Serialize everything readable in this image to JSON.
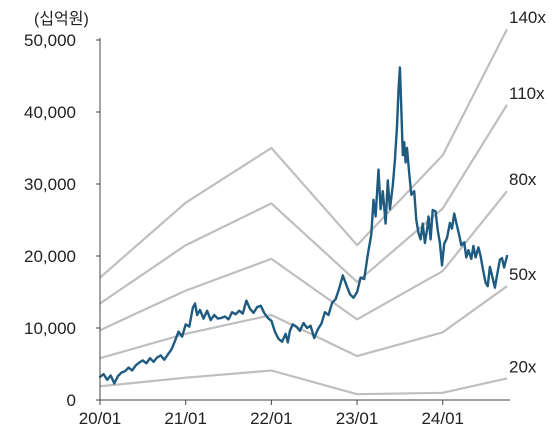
{
  "chart_data": {
    "type": "line",
    "title": "",
    "unit_label": "(십억원)",
    "xlabel": "",
    "ylabel": "",
    "x_ticks": [
      {
        "t": 0,
        "label": "20/01"
      },
      {
        "t": 12,
        "label": "21/01"
      },
      {
        "t": 24,
        "label": "22/01"
      },
      {
        "t": 36,
        "label": "23/01"
      },
      {
        "t": 48,
        "label": "24/01"
      }
    ],
    "xlim": [
      0,
      57
    ],
    "y_ticks": [
      {
        "v": 0,
        "label": "0"
      },
      {
        "v": 10000,
        "label": "10,000"
      },
      {
        "v": 20000,
        "label": "20,000"
      },
      {
        "v": 30000,
        "label": "30,000"
      },
      {
        "v": 40000,
        "label": "40,000"
      },
      {
        "v": 50000,
        "label": "50,000"
      }
    ],
    "ylim": [
      0,
      50000
    ],
    "grid": false,
    "band_series": [
      {
        "label": "140x",
        "points": [
          [
            0,
            17000
          ],
          [
            12,
            27400
          ],
          [
            24,
            35000
          ],
          [
            36,
            21500
          ],
          [
            48,
            34000
          ],
          [
            57,
            51500
          ]
        ]
      },
      {
        "label": "110x",
        "points": [
          [
            0,
            13400
          ],
          [
            12,
            21500
          ],
          [
            24,
            27300
          ],
          [
            36,
            16400
          ],
          [
            48,
            26600
          ],
          [
            57,
            41000
          ]
        ]
      },
      {
        "label": "80x",
        "points": [
          [
            0,
            9700
          ],
          [
            12,
            15200
          ],
          [
            24,
            19600
          ],
          [
            36,
            11200
          ],
          [
            48,
            17900
          ],
          [
            57,
            29000
          ]
        ]
      },
      {
        "label": "50x",
        "points": [
          [
            0,
            5800
          ],
          [
            12,
            9200
          ],
          [
            24,
            11800
          ],
          [
            36,
            6100
          ],
          [
            48,
            9400
          ],
          [
            57,
            15800
          ]
        ]
      },
      {
        "label": "20x",
        "points": [
          [
            0,
            1900
          ],
          [
            12,
            3100
          ],
          [
            24,
            4100
          ],
          [
            36,
            800
          ],
          [
            48,
            1000
          ],
          [
            57,
            3000
          ]
        ]
      }
    ],
    "series": [
      {
        "values": [
          [
            0,
            3200
          ],
          [
            0.5,
            3600
          ],
          [
            1,
            2800
          ],
          [
            1.5,
            3400
          ],
          [
            2,
            2300
          ],
          [
            2.5,
            3300
          ],
          [
            3,
            3800
          ],
          [
            3.5,
            4000
          ],
          [
            4,
            4500
          ],
          [
            4.5,
            4100
          ],
          [
            5,
            4800
          ],
          [
            5.5,
            5200
          ],
          [
            6,
            5500
          ],
          [
            6.5,
            5100
          ],
          [
            7,
            5800
          ],
          [
            7.5,
            5300
          ],
          [
            8,
            5900
          ],
          [
            8.5,
            6200
          ],
          [
            9,
            5600
          ],
          [
            9.5,
            6300
          ],
          [
            10,
            7000
          ],
          [
            10.5,
            8200
          ],
          [
            11,
            9500
          ],
          [
            11.5,
            8800
          ],
          [
            12,
            10500
          ],
          [
            12.5,
            10200
          ],
          [
            13,
            12800
          ],
          [
            13.3,
            13400
          ],
          [
            13.6,
            11800
          ],
          [
            14,
            12500
          ],
          [
            14.5,
            11300
          ],
          [
            15,
            12400
          ],
          [
            15.5,
            11100
          ],
          [
            16,
            11800
          ],
          [
            16.5,
            11300
          ],
          [
            17,
            11400
          ],
          [
            17.5,
            11600
          ],
          [
            18,
            11200
          ],
          [
            18.5,
            12200
          ],
          [
            19,
            11900
          ],
          [
            19.5,
            12400
          ],
          [
            20,
            12000
          ],
          [
            20.5,
            13800
          ],
          [
            21,
            12700
          ],
          [
            21.5,
            12100
          ],
          [
            22,
            12900
          ],
          [
            22.5,
            13100
          ],
          [
            23,
            12100
          ],
          [
            23.5,
            11400
          ],
          [
            24,
            11000
          ],
          [
            24.5,
            9500
          ],
          [
            25,
            8500
          ],
          [
            25.5,
            8100
          ],
          [
            26,
            9200
          ],
          [
            26.3,
            8000
          ],
          [
            26.6,
            9600
          ],
          [
            27,
            10500
          ],
          [
            27.5,
            10200
          ],
          [
            28,
            9600
          ],
          [
            28.5,
            10700
          ],
          [
            29,
            10000
          ],
          [
            29.5,
            10300
          ],
          [
            30,
            8600
          ],
          [
            30.5,
            9800
          ],
          [
            31,
            10600
          ],
          [
            31.5,
            12200
          ],
          [
            32,
            11800
          ],
          [
            32.5,
            13500
          ],
          [
            33,
            14000
          ],
          [
            33.5,
            15500
          ],
          [
            34,
            17300
          ],
          [
            34.5,
            16000
          ],
          [
            35,
            14700
          ],
          [
            35.5,
            14200
          ],
          [
            36,
            15000
          ],
          [
            36.5,
            17000
          ],
          [
            37,
            16800
          ],
          [
            37.5,
            20200
          ],
          [
            38,
            23000
          ],
          [
            38.3,
            27800
          ],
          [
            38.6,
            25500
          ],
          [
            39,
            32000
          ],
          [
            39.3,
            26500
          ],
          [
            39.6,
            29000
          ],
          [
            40,
            24500
          ],
          [
            40.3,
            30500
          ],
          [
            40.6,
            26500
          ],
          [
            41,
            29800
          ],
          [
            41.3,
            33300
          ],
          [
            41.6,
            38000
          ],
          [
            41.8,
            43000
          ],
          [
            42,
            46200
          ],
          [
            42.2,
            40500
          ],
          [
            42.4,
            34000
          ],
          [
            42.6,
            35800
          ],
          [
            42.8,
            33000
          ],
          [
            43,
            35000
          ],
          [
            43.3,
            31500
          ],
          [
            43.6,
            28500
          ],
          [
            44,
            29000
          ],
          [
            44.3,
            25000
          ],
          [
            44.6,
            23200
          ],
          [
            44.9,
            22300
          ],
          [
            45.2,
            24500
          ],
          [
            45.5,
            21800
          ],
          [
            45.8,
            23600
          ],
          [
            46,
            25500
          ],
          [
            46.3,
            22300
          ],
          [
            46.6,
            26400
          ],
          [
            47,
            26200
          ],
          [
            47.3,
            23600
          ],
          [
            47.6,
            21800
          ],
          [
            47.9,
            18700
          ],
          [
            48.2,
            21700
          ],
          [
            48.6,
            22500
          ],
          [
            49,
            24600
          ],
          [
            49.3,
            23800
          ],
          [
            49.6,
            25900
          ],
          [
            50,
            24200
          ],
          [
            50.3,
            22900
          ],
          [
            50.6,
            21500
          ],
          [
            51,
            21900
          ],
          [
            51.3,
            19800
          ],
          [
            51.6,
            20800
          ],
          [
            52,
            19600
          ],
          [
            52.3,
            21400
          ],
          [
            52.6,
            19800
          ],
          [
            53,
            21200
          ],
          [
            53.3,
            20000
          ],
          [
            53.6,
            18300
          ],
          [
            54,
            16300
          ],
          [
            54.3,
            15800
          ],
          [
            54.6,
            18500
          ],
          [
            55,
            16900
          ],
          [
            55.3,
            15600
          ],
          [
            55.6,
            17300
          ],
          [
            56,
            19500
          ],
          [
            56.3,
            19700
          ],
          [
            56.6,
            18400
          ],
          [
            57,
            20000
          ]
        ]
      }
    ],
    "colors": {
      "price_line": "#1f5a80",
      "band_line": "#bfbfbf",
      "axis": "#444444"
    }
  }
}
